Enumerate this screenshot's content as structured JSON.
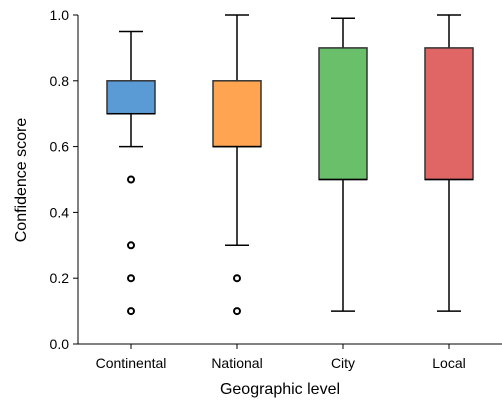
{
  "chart_data": {
    "type": "box",
    "xlabel": "Geographic level",
    "ylabel": "Confidence score",
    "ylim": [
      0.0,
      1.0
    ],
    "yticks": [
      "0.0",
      "0.2",
      "0.4",
      "0.6",
      "0.8",
      "1.0"
    ],
    "grid": false,
    "categories": [
      "Continental",
      "National",
      "City",
      "Local"
    ],
    "colors": [
      "#5b9bd5",
      "#ffa552",
      "#6abf6a",
      "#e06666"
    ],
    "boxes": [
      {
        "category": "Continental",
        "whisker_low": 0.6,
        "q1": 0.7,
        "median": 0.7,
        "q3": 0.8,
        "whisker_high": 0.95,
        "outliers": [
          0.5,
          0.3,
          0.2,
          0.1
        ]
      },
      {
        "category": "National",
        "whisker_low": 0.3,
        "q1": 0.6,
        "median": 0.6,
        "q3": 0.8,
        "whisker_high": 1.0,
        "outliers": [
          0.2,
          0.1
        ]
      },
      {
        "category": "City",
        "whisker_low": 0.1,
        "q1": 0.5,
        "median": 0.5,
        "q3": 0.9,
        "whisker_high": 0.99,
        "outliers": []
      },
      {
        "category": "Local",
        "whisker_low": 0.1,
        "q1": 0.5,
        "median": 0.5,
        "q3": 0.9,
        "whisker_high": 1.0,
        "outliers": []
      }
    ]
  }
}
